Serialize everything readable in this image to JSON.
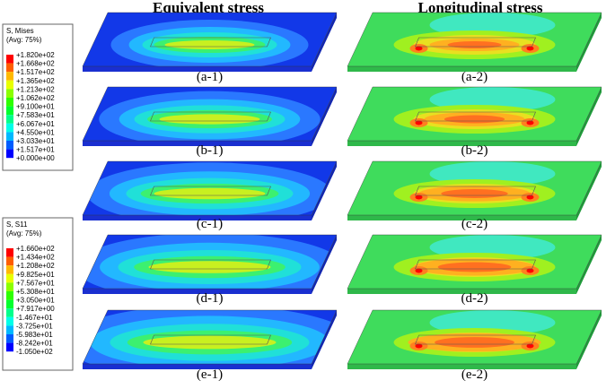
{
  "headers": [
    "Equivalent stress",
    "Longitudinal stress"
  ],
  "legends": [
    {
      "title": "S, Mises",
      "subtitle": "(Avg: 75%)",
      "labels": [
        "+1.820e+02",
        "+1.668e+02",
        "+1.517e+02",
        "+1.365e+02",
        "+1.213e+02",
        "+1.062e+02",
        "+9.100e+01",
        "+7.583e+01",
        "+6.067e+01",
        "+4.550e+01",
        "+3.033e+01",
        "+1.517e+01",
        "+0.000e+00"
      ]
    },
    {
      "title": "S, S11",
      "subtitle": "(Avg: 75%)",
      "labels": [
        "+1.660e+02",
        "+1.434e+02",
        "+1.208e+02",
        "+9.825e+01",
        "+7.567e+01",
        "+5.308e+01",
        "+3.050e+01",
        "+7.917e+00",
        "-1.467e+01",
        "-3.725e+01",
        "-5.983e+01",
        "-8.242e+01",
        "-1.050e+02"
      ]
    }
  ],
  "panels": [
    [
      "(a-1)",
      "(a-2)"
    ],
    [
      "(b-1)",
      "(b-2)"
    ],
    [
      "(c-1)",
      "(c-2)"
    ],
    [
      "(d-1)",
      "(d-2)"
    ],
    [
      "(e-1)",
      "(e-2)"
    ]
  ]
}
